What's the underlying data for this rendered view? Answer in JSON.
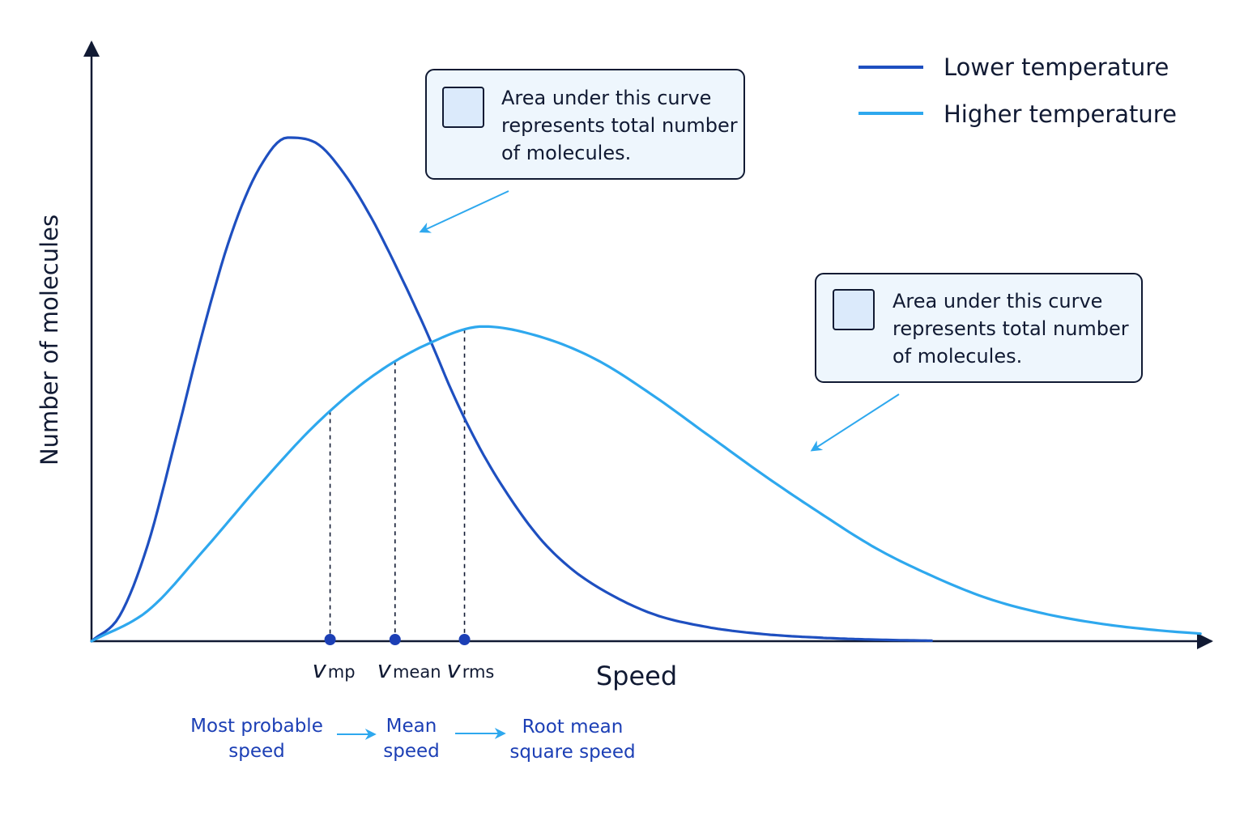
{
  "chart_data": {
    "type": "line",
    "title": "",
    "xlabel": "Speed",
    "ylabel": "Number of molecules",
    "xlim": [
      0,
      100
    ],
    "ylim": [
      0,
      100
    ],
    "grid": false,
    "legend_position": "top-right",
    "series": [
      {
        "name": "Lower temperature",
        "color": "#1e4fc0",
        "x": [
          0,
          2.5,
          5,
          7.5,
          10,
          12.5,
          15,
          17.5,
          20,
          22.5,
          25,
          27.5,
          30,
          32.5,
          35,
          37.5,
          40,
          42.5,
          45,
          50,
          55,
          60,
          65,
          70,
          75
        ],
        "y": [
          0,
          5,
          19,
          40,
          62,
          81,
          94,
          100,
          99,
          93,
          84,
          73,
          61,
          48,
          37,
          28,
          20.5,
          15,
          11,
          5.5,
          2.8,
          1.4,
          0.7,
          0.3,
          0.1
        ]
      },
      {
        "name": "Higher temperature",
        "color": "#2ea8ee",
        "x": [
          0,
          5,
          10,
          15,
          20,
          25,
          30,
          35,
          40,
          45,
          50,
          55,
          60,
          65,
          70,
          75,
          80,
          85,
          90,
          95,
          99
        ],
        "y": [
          0,
          6,
          18,
          31,
          43,
          52.5,
          59,
          62.5,
          60.5,
          56,
          49,
          41,
          33,
          25.5,
          18.5,
          13,
          8.5,
          5.5,
          3.5,
          2.2,
          1.5
        ]
      }
    ],
    "markers": [
      {
        "x": 21.3,
        "label_main": "v",
        "label_sub": "mp"
      },
      {
        "x": 27.1,
        "label_main": "v",
        "label_sub": "mean"
      },
      {
        "x": 33.3,
        "label_main": "v",
        "label_sub": "rms"
      }
    ],
    "annotations": [
      {
        "target_series": 0,
        "text_lines": [
          "Area under this curve",
          "represents total number",
          "of molecules."
        ]
      },
      {
        "target_series": 1,
        "text_lines": [
          "Area under this curve",
          "represents total number",
          "of molecules."
        ]
      }
    ],
    "speed_order": [
      {
        "lines": [
          "Most probable",
          "speed"
        ]
      },
      {
        "lines": [
          "Mean",
          "speed"
        ]
      },
      {
        "lines": [
          "Root mean",
          "square speed"
        ]
      }
    ],
    "colors": {
      "axis": "#111a33",
      "label_blue": "#1c3fb5",
      "arrow_cyan": "#2ea8ee",
      "callout_fill": "#eef6fd",
      "callout_stroke": "#111a33",
      "swatch_fill": "#dbeafb"
    }
  }
}
